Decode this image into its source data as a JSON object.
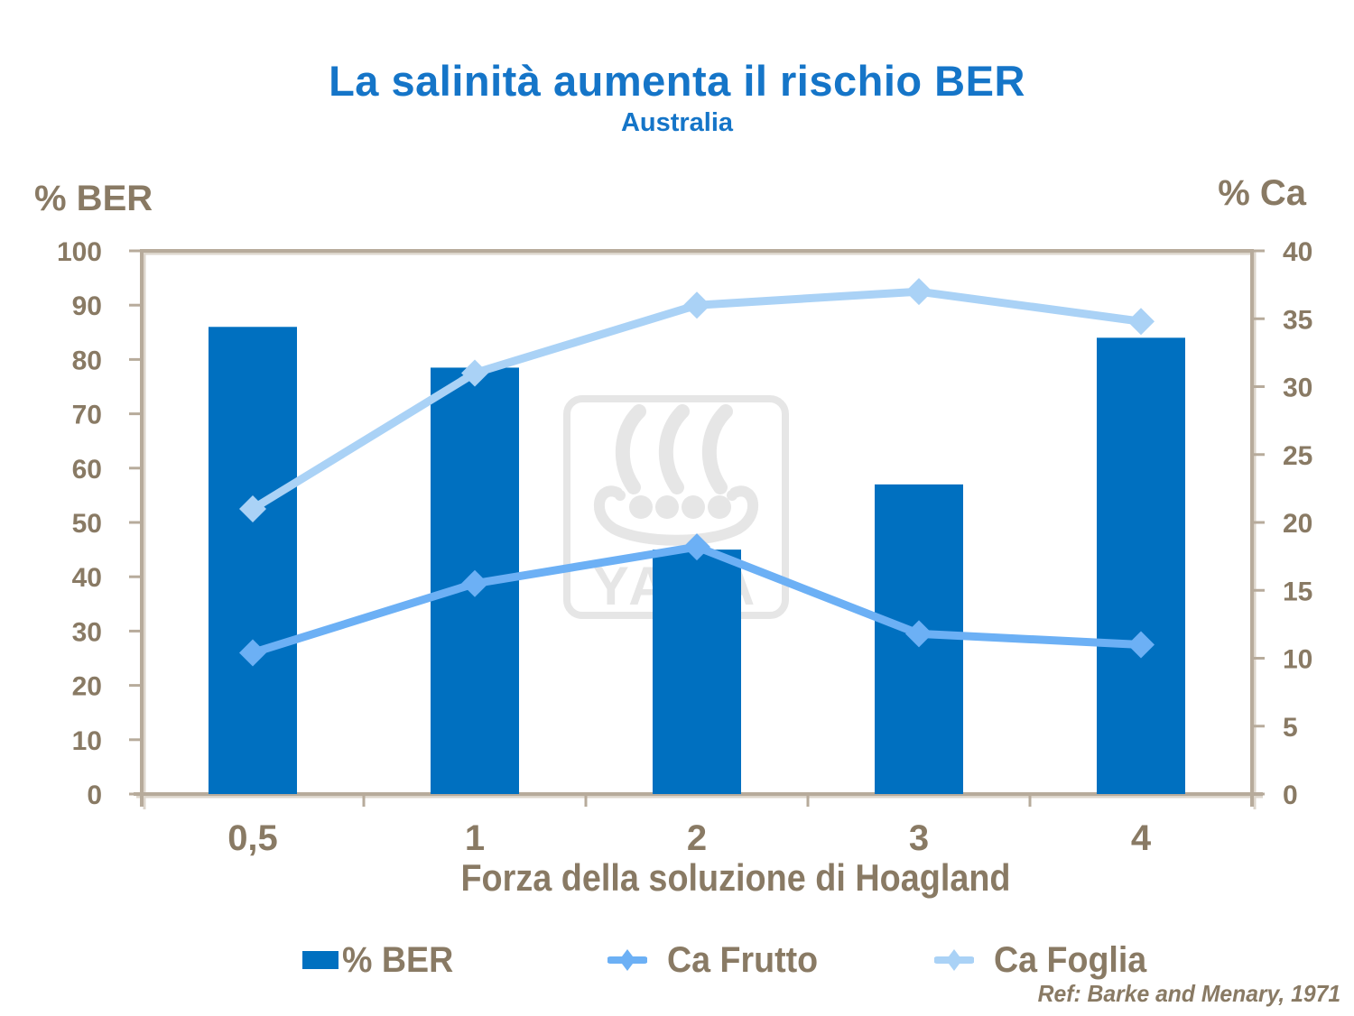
{
  "title": "La salinità aumenta il rischio BER",
  "subtitle": "Australia",
  "left_axis_title": "% BER",
  "right_axis_title": "% Ca",
  "x_axis_title": "Forza della soluzione di Hoagland",
  "reference": "Ref: Barke and Menary, 1971",
  "watermark_text": "YARA",
  "colors": {
    "title": "#1575C8",
    "text": "#897A64",
    "axis": "#B7AB9B",
    "axisshadow": "#DDD6CC",
    "watermark": "#E6E6E6",
    "background": "#FFFFFF"
  },
  "chart_data": {
    "type": "combo-bar-line",
    "categories": [
      "0,5",
      "1",
      "2",
      "3",
      "4"
    ],
    "series": [
      {
        "name": "% BER",
        "type": "bar",
        "axis": "left",
        "color": "#0070C0",
        "values": [
          86,
          78.5,
          45,
          57,
          84
        ]
      },
      {
        "name": "Ca Frutto",
        "type": "line",
        "axis": "right",
        "color": "#6CB0F5",
        "marker": "diamond",
        "values": [
          10.4,
          15.5,
          18.2,
          11.8,
          11
        ]
      },
      {
        "name": "Ca Foglia",
        "type": "line",
        "axis": "right",
        "color": "#AAD2F6",
        "marker": "diamond",
        "values": [
          21,
          31,
          36,
          37,
          34.8
        ]
      }
    ],
    "left_axis": {
      "min": 0,
      "max": 100,
      "ticks": [
        0,
        10,
        20,
        30,
        40,
        50,
        60,
        70,
        80,
        90,
        100
      ]
    },
    "right_axis": {
      "min": 0,
      "max": 40,
      "ticks": [
        0,
        5,
        10,
        15,
        20,
        25,
        30,
        35,
        40
      ]
    },
    "legend_position": "bottom",
    "grid": false
  }
}
